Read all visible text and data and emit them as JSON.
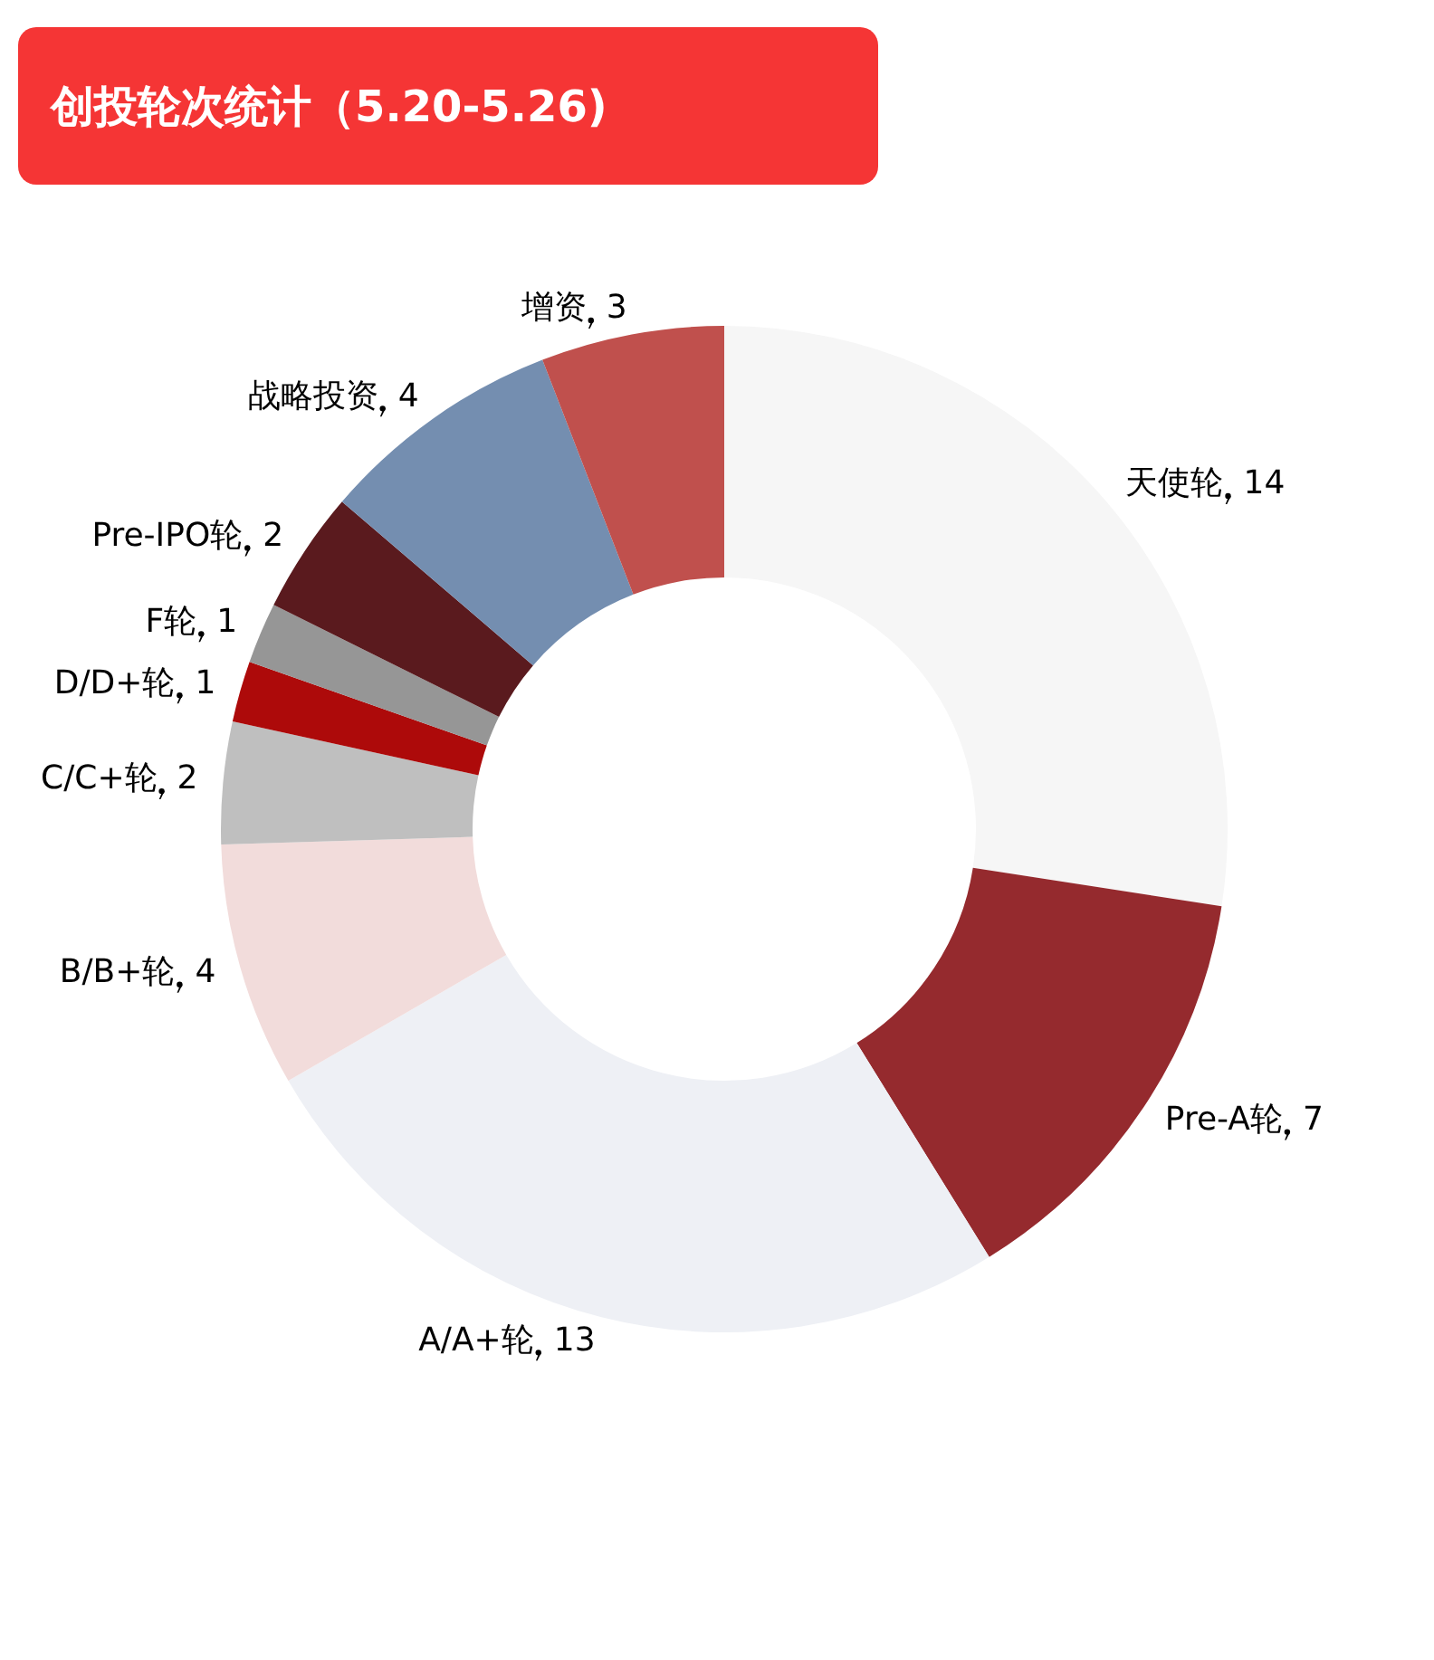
{
  "chart_data": {
    "type": "donut",
    "title": "创投轮次统计（5.20-5.26)",
    "categories": [
      "天使轮",
      "Pre-A轮",
      "A/A+轮",
      "B/B+轮",
      "C/C+轮",
      "D/D+轮",
      "F轮",
      "Pre-IPO轮",
      "战略投资",
      "增资"
    ],
    "values": [
      14,
      7,
      13,
      4,
      2,
      1,
      1,
      2,
      4,
      3
    ],
    "colors": [
      "#f6f6f6",
      "#952a2e",
      "#eef0f5",
      "#f2dcdb",
      "#bfbfbf",
      "#ad0a0a",
      "#969696",
      "#5a1a1e",
      "#748eb0",
      "#c0504d"
    ],
    "data_labels": true,
    "legend": false
  }
}
